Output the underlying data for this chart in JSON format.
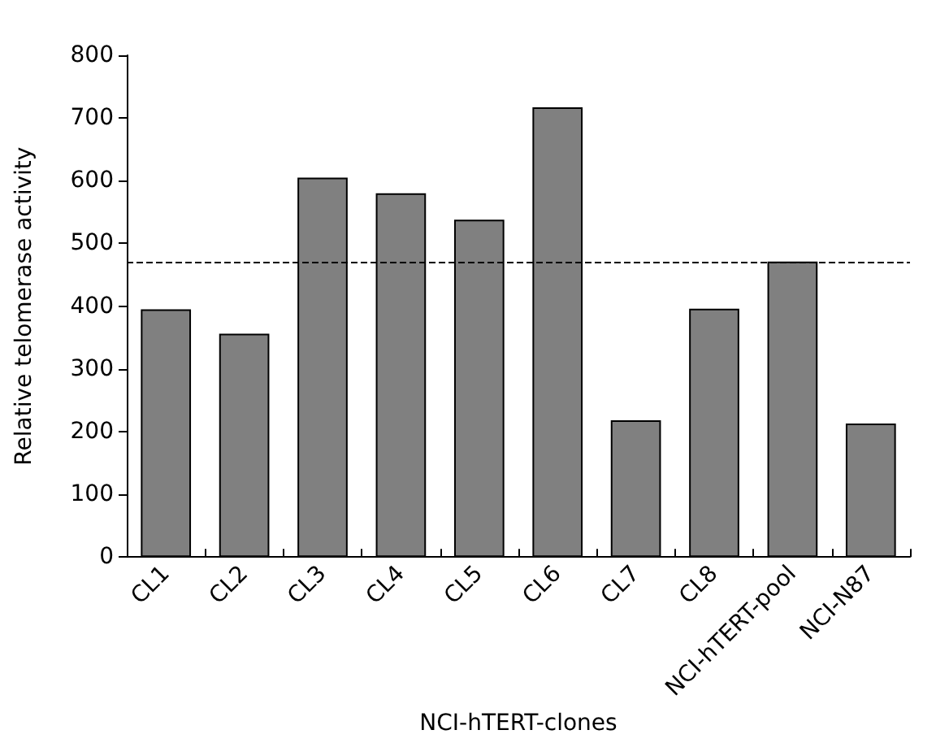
{
  "chart_data": {
    "type": "bar",
    "xlabel": "NCI-hTERT-clones",
    "ylabel": "Relative telomerase activity",
    "categories": [
      "CL1",
      "CL2",
      "CL3",
      "CL4",
      "CL5",
      "CL6",
      "CL7",
      "CL8",
      "NCI-hTERT-pool",
      "NCI-N87"
    ],
    "values": [
      395,
      356,
      605,
      580,
      538,
      717,
      218,
      396,
      471,
      213
    ],
    "color": "#808080",
    "ylim": [
      0,
      800
    ],
    "yticks": [
      0,
      100,
      200,
      300,
      400,
      500,
      600,
      700,
      800
    ],
    "grid": false,
    "ref_lines": [
      {
        "axis": "y",
        "value": 471,
        "line_style": "dashed",
        "color": "#000000"
      }
    ]
  }
}
